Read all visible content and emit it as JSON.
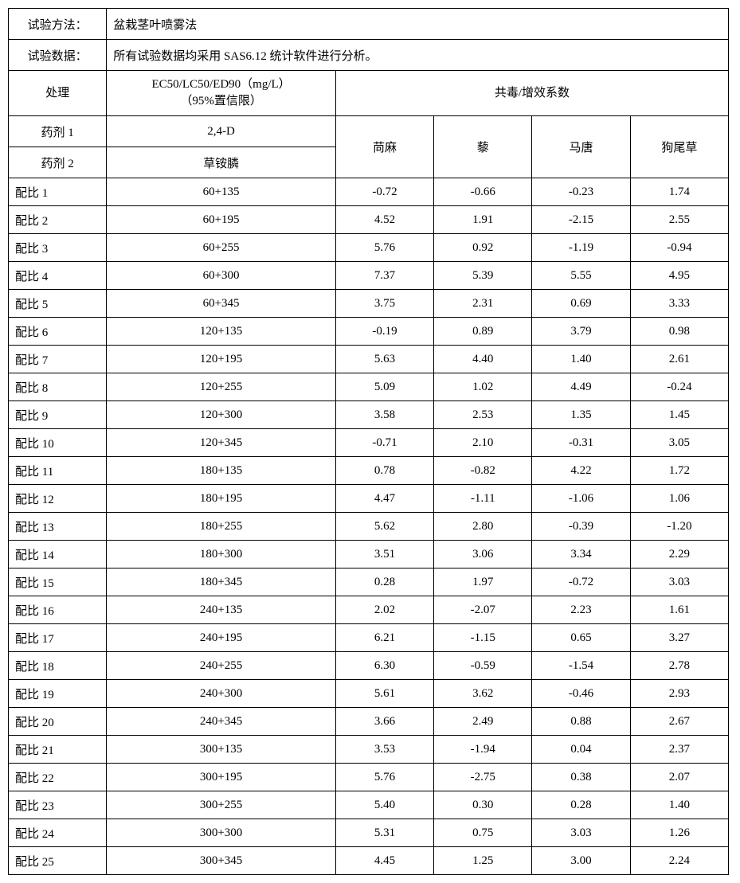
{
  "header": {
    "method_label": "试验方法：",
    "method_value": "盆栽茎叶喷雾法",
    "data_label": "试验数据：",
    "data_value": "所有试验数据均采用 SAS6.12 统计软件进行分析。",
    "table_type": "table"
  },
  "subheader": {
    "treatment": "处理",
    "formula_line1": "EC50/LC50/ED90（mg/L）",
    "formula_line2": "（95%置信限）",
    "coeff": "共毒/增效系数"
  },
  "agents": {
    "agent1_label": "药剂 1",
    "agent1_value": "2,4-D",
    "agent2_label": "药剂 2",
    "agent2_value": "草铵膦",
    "col1": "苘麻",
    "col2": "藜",
    "col3": "马唐",
    "col4": "狗尾草"
  },
  "rows": [
    {
      "label": "配比 1",
      "formula": "60+135",
      "v1": "-0.72",
      "v2": "-0.66",
      "v3": "-0.23",
      "v4": "1.74"
    },
    {
      "label": "配比 2",
      "formula": "60+195",
      "v1": "4.52",
      "v2": "1.91",
      "v3": "-2.15",
      "v4": "2.55"
    },
    {
      "label": "配比 3",
      "formula": "60+255",
      "v1": "5.76",
      "v2": "0.92",
      "v3": "-1.19",
      "v4": "-0.94"
    },
    {
      "label": "配比 4",
      "formula": "60+300",
      "v1": "7.37",
      "v2": "5.39",
      "v3": "5.55",
      "v4": "4.95"
    },
    {
      "label": "配比 5",
      "formula": "60+345",
      "v1": "3.75",
      "v2": "2.31",
      "v3": "0.69",
      "v4": "3.33"
    },
    {
      "label": "配比 6",
      "formula": "120+135",
      "v1": "-0.19",
      "v2": "0.89",
      "v3": "3.79",
      "v4": "0.98"
    },
    {
      "label": "配比 7",
      "formula": "120+195",
      "v1": "5.63",
      "v2": "4.40",
      "v3": "1.40",
      "v4": "2.61"
    },
    {
      "label": "配比 8",
      "formula": "120+255",
      "v1": "5.09",
      "v2": "1.02",
      "v3": "4.49",
      "v4": "-0.24"
    },
    {
      "label": "配比 9",
      "formula": "120+300",
      "v1": "3.58",
      "v2": "2.53",
      "v3": "1.35",
      "v4": "1.45"
    },
    {
      "label": "配比 10",
      "formula": "120+345",
      "v1": "-0.71",
      "v2": "2.10",
      "v3": "-0.31",
      "v4": "3.05"
    },
    {
      "label": "配比 11",
      "formula": "180+135",
      "v1": "0.78",
      "v2": "-0.82",
      "v3": "4.22",
      "v4": "1.72"
    },
    {
      "label": "配比 12",
      "formula": "180+195",
      "v1": "4.47",
      "v2": "-1.11",
      "v3": "-1.06",
      "v4": "1.06"
    },
    {
      "label": "配比 13",
      "formula": "180+255",
      "v1": "5.62",
      "v2": "2.80",
      "v3": "-0.39",
      "v4": "-1.20"
    },
    {
      "label": "配比 14",
      "formula": "180+300",
      "v1": "3.51",
      "v2": "3.06",
      "v3": "3.34",
      "v4": "2.29"
    },
    {
      "label": "配比 15",
      "formula": "180+345",
      "v1": "0.28",
      "v2": "1.97",
      "v3": "-0.72",
      "v4": "3.03"
    },
    {
      "label": "配比 16",
      "formula": "240+135",
      "v1": "2.02",
      "v2": "-2.07",
      "v3": "2.23",
      "v4": "1.61"
    },
    {
      "label": "配比 17",
      "formula": "240+195",
      "v1": "6.21",
      "v2": "-1.15",
      "v3": "0.65",
      "v4": "3.27"
    },
    {
      "label": "配比 18",
      "formula": "240+255",
      "v1": "6.30",
      "v2": "-0.59",
      "v3": "-1.54",
      "v4": "2.78"
    },
    {
      "label": "配比 19",
      "formula": "240+300",
      "v1": "5.61",
      "v2": "3.62",
      "v3": "-0.46",
      "v4": "2.93"
    },
    {
      "label": "配比 20",
      "formula": "240+345",
      "v1": "3.66",
      "v2": "2.49",
      "v3": "0.88",
      "v4": "2.67"
    },
    {
      "label": "配比 21",
      "formula": "300+135",
      "v1": "3.53",
      "v2": "-1.94",
      "v3": "0.04",
      "v4": "2.37"
    },
    {
      "label": "配比 22",
      "formula": "300+195",
      "v1": "5.76",
      "v2": "-2.75",
      "v3": "0.38",
      "v4": "2.07"
    },
    {
      "label": "配比 23",
      "formula": "300+255",
      "v1": "5.40",
      "v2": "0.30",
      "v3": "0.28",
      "v4": "1.40"
    },
    {
      "label": "配比 24",
      "formula": "300+300",
      "v1": "5.31",
      "v2": "0.75",
      "v3": "3.03",
      "v4": "1.26"
    },
    {
      "label": "配比 25",
      "formula": "300+345",
      "v1": "4.45",
      "v2": "1.25",
      "v3": "3.00",
      "v4": "2.24"
    }
  ],
  "style": {
    "border_color": "#000000",
    "bg_color": "#ffffff",
    "font_family": "SimSun",
    "font_size_pt": 11
  }
}
